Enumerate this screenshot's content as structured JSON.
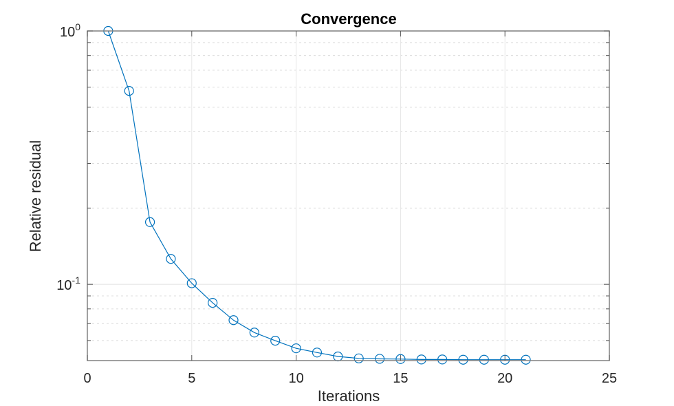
{
  "chart_data": {
    "type": "line",
    "title": "Convergence",
    "xlabel": "Iterations",
    "ylabel": "Relative residual",
    "xlim": [
      0,
      25
    ],
    "ylim": [
      0.05,
      1
    ],
    "yscale": "log",
    "grid": true,
    "minor_grid": true,
    "legend": null,
    "xticks": [
      0,
      5,
      10,
      15,
      20,
      25
    ],
    "xtick_labels": [
      "0",
      "5",
      "10",
      "15",
      "20",
      "25"
    ],
    "yticks": [
      0.1,
      1
    ],
    "ytick_labels": [
      {
        "base": "10",
        "exp": "-1"
      },
      {
        "base": "10",
        "exp": "0"
      }
    ],
    "series": [
      {
        "name": "Relative residual",
        "color": "#0072BD",
        "marker": "circle",
        "x": [
          1,
          2,
          3,
          4,
          5,
          6,
          7,
          8,
          9,
          10,
          11,
          12,
          13,
          14,
          15,
          16,
          17,
          18,
          19,
          20,
          21
        ],
        "y": [
          1.0,
          0.58,
          0.176,
          0.126,
          0.101,
          0.0845,
          0.0722,
          0.0645,
          0.0599,
          0.0559,
          0.0538,
          0.0519,
          0.051,
          0.0508,
          0.0507,
          0.0505,
          0.0505,
          0.0504,
          0.0504,
          0.0504,
          0.0504
        ]
      }
    ]
  },
  "colors": {
    "axis": "#808080",
    "grid_major": "#e6e6e6",
    "grid_minor": "#dcdcdc",
    "line": "#0072BD"
  }
}
